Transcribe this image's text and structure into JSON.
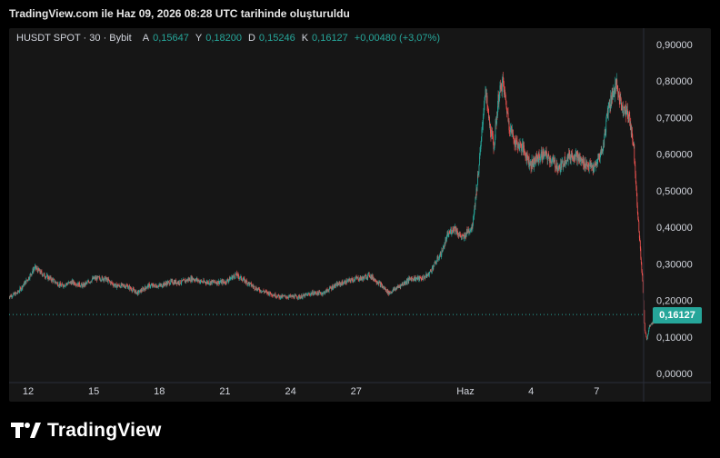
{
  "caption": "TradingView.com ile Haz 09, 2026 08:28 UTC tarihinde oluşturuldu",
  "symbol": {
    "name": "HUSDT SPOT · 30 · Bybit",
    "open_label": "A",
    "open": "0,15647",
    "high_label": "Y",
    "high": "0,18200",
    "low_label": "D",
    "low": "0,15246",
    "close_label": "K",
    "close": "0,16127",
    "change": "+0,00480 (+3,07%)"
  },
  "last_price_label": "0,16127",
  "brand": {
    "name": "TradingView",
    "logo": "tradingview-logo-icon"
  },
  "colors": {
    "up": "#26a69a",
    "down": "#ef5350",
    "background": "#161616",
    "page": "#000000"
  },
  "chart_data": {
    "type": "line",
    "style": "candlestick",
    "x_tick_labels": [
      "12",
      "15",
      "18",
      "21",
      "24",
      "27",
      "Haz",
      "4",
      "7"
    ],
    "x_tick_days": [
      0,
      3,
      6,
      9,
      12,
      15,
      20,
      23,
      26
    ],
    "y_tick_labels": [
      "0,90000",
      "0,80000",
      "0,70000",
      "0,60000",
      "0,50000",
      "0,40000",
      "0,30000",
      "0,20000",
      "0,10000",
      "0,00000"
    ],
    "ylim": [
      0,
      0.9
    ],
    "grid": false,
    "last_price": 0.16127,
    "series": [
      {
        "x": [
          -0.9,
          -0.5,
          0.0,
          0.3,
          0.7,
          1.0,
          1.5,
          2.0,
          2.5,
          3.0,
          3.5,
          4.0,
          4.5,
          5.0,
          5.5,
          6.0,
          6.5,
          7.0,
          7.5,
          8.0,
          8.5,
          9.0,
          9.5,
          10.0,
          10.5,
          11.0,
          11.5,
          12.0,
          12.5,
          13.0,
          13.5,
          14.0,
          14.5,
          15.0,
          15.3,
          15.6,
          16.0,
          16.5,
          17.0,
          17.5,
          18.0,
          18.3,
          18.6,
          18.9,
          19.2,
          19.5,
          19.7,
          19.9,
          20.1,
          20.3,
          20.5,
          20.7,
          20.9,
          21.1,
          21.3,
          21.5,
          21.7,
          22.0,
          22.3,
          22.6,
          23.0,
          23.3,
          23.6,
          24.0,
          24.3,
          24.6,
          25.0,
          25.3,
          25.6,
          25.9,
          26.1,
          26.3,
          26.5,
          26.7,
          26.9,
          27.1,
          27.3,
          27.5,
          27.7,
          27.9,
          28.1,
          28.2,
          28.3,
          28.4,
          28.6,
          28.8
        ],
        "values": [
          0.21,
          0.22,
          0.26,
          0.29,
          0.27,
          0.26,
          0.24,
          0.25,
          0.24,
          0.26,
          0.26,
          0.24,
          0.24,
          0.22,
          0.24,
          0.24,
          0.25,
          0.25,
          0.26,
          0.25,
          0.25,
          0.25,
          0.27,
          0.25,
          0.23,
          0.22,
          0.21,
          0.21,
          0.21,
          0.22,
          0.22,
          0.24,
          0.25,
          0.26,
          0.26,
          0.27,
          0.25,
          0.22,
          0.24,
          0.26,
          0.26,
          0.27,
          0.3,
          0.33,
          0.38,
          0.4,
          0.38,
          0.37,
          0.39,
          0.4,
          0.5,
          0.62,
          0.78,
          0.68,
          0.62,
          0.75,
          0.8,
          0.68,
          0.63,
          0.62,
          0.57,
          0.59,
          0.6,
          0.58,
          0.56,
          0.59,
          0.6,
          0.58,
          0.57,
          0.56,
          0.59,
          0.62,
          0.72,
          0.76,
          0.79,
          0.74,
          0.72,
          0.7,
          0.62,
          0.42,
          0.25,
          0.12,
          0.09,
          0.13,
          0.14,
          0.16
        ]
      }
    ]
  }
}
